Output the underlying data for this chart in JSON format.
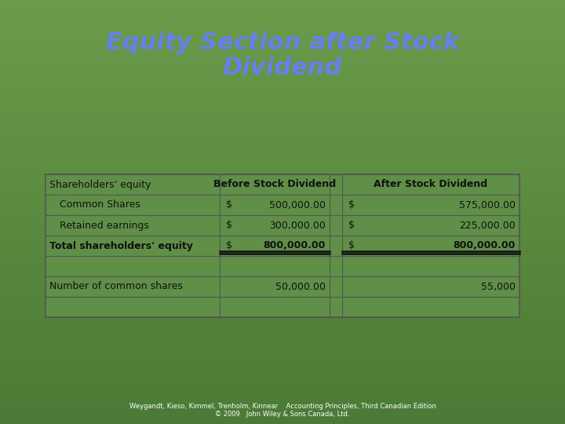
{
  "title_line1": "Equity Section after Stock",
  "title_line2": "Dividend",
  "title_color": "#6680ee",
  "bg_color_top": "#6b9b4a",
  "bg_color_bottom": "#4a7a35",
  "header_col1": "Before Stock Dividend",
  "header_col2": "After Stock Dividend",
  "rows": [
    {
      "label": "Shareholders' equity",
      "dollar_b": "",
      "val_b": "",
      "dollar_a": "",
      "val_a": "",
      "indent": false,
      "bold": false,
      "total": false
    },
    {
      "label": "Common Shares",
      "dollar_b": "$",
      "val_b": "500,000.00",
      "dollar_a": "$",
      "val_a": "575,000.00",
      "indent": true,
      "bold": false,
      "total": false
    },
    {
      "label": "Retained earnings",
      "dollar_b": "$",
      "val_b": "300,000.00",
      "dollar_a": "$",
      "val_a": "225,000.00",
      "indent": true,
      "bold": false,
      "total": false
    },
    {
      "label": "Total shareholders' equity",
      "dollar_b": "$",
      "val_b": "800,000.00",
      "dollar_a": "$",
      "val_a": "800,000.00",
      "indent": false,
      "bold": true,
      "total": true
    },
    {
      "label": "",
      "dollar_b": "",
      "val_b": "",
      "dollar_a": "",
      "val_a": "",
      "indent": false,
      "bold": false,
      "total": false
    },
    {
      "label": "Number of common shares",
      "dollar_b": "",
      "val_b": "50,000.00",
      "dollar_a": "",
      "val_a": "55,000",
      "indent": false,
      "bold": false,
      "total": false
    }
  ],
  "footer_line1": "Weygandt, Kieso, Kimmel, Trenholm, Kinnear    Accounting Principles, Third Canadian Edition",
  "footer_line2": "© 2009   John Wiley & Sons Canada, Ltd.",
  "footer_color": "#ffffff",
  "text_color": "#111111",
  "table_face": "#608f48",
  "table_edge": "#555555"
}
